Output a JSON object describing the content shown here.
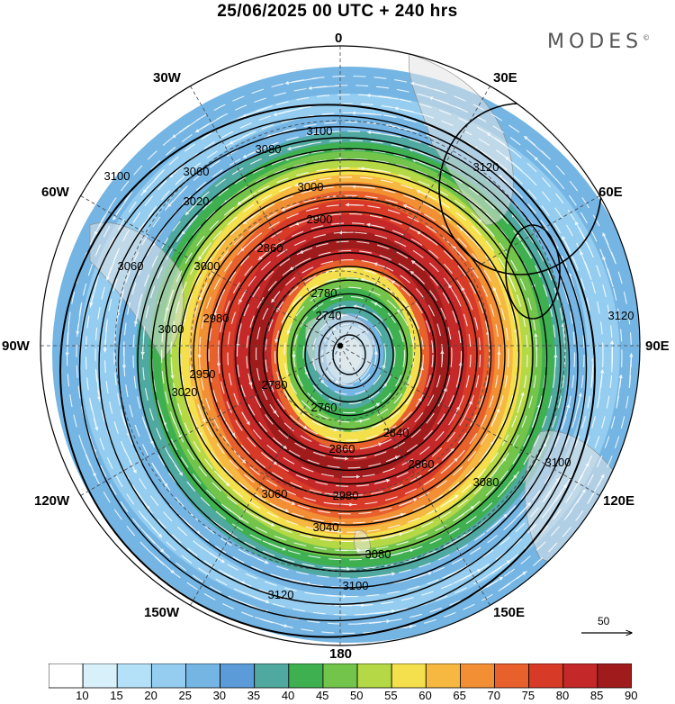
{
  "title": "25/06/2025  00 UTC  + 240 hrs",
  "brand": "MODES",
  "brand_mark": "©",
  "longitude_labels": [
    {
      "text": "0"
    },
    {
      "text": "30E"
    },
    {
      "text": "60E"
    },
    {
      "text": "90E"
    },
    {
      "text": "120E"
    },
    {
      "text": "150E"
    },
    {
      "text": "180"
    },
    {
      "text": "150W"
    },
    {
      "text": "120W"
    },
    {
      "text": "90W"
    },
    {
      "text": "60W"
    },
    {
      "text": "30W"
    }
  ],
  "contour_labels": [
    "3100",
    "3080",
    "3060",
    "3020",
    "3000",
    "2900",
    "2860",
    "2780",
    "2740",
    "2760",
    "2780",
    "2860",
    "2840",
    "2960",
    "2980",
    "3040",
    "3080",
    "3100",
    "3120",
    "3120",
    "3120",
    "3100",
    "3080",
    "3060",
    "3000",
    "2980",
    "2950",
    "3020",
    "3100",
    "3060",
    "3000"
  ],
  "legend": {
    "values": [
      "10",
      "15",
      "20",
      "25",
      "30",
      "35",
      "40",
      "45",
      "50",
      "55",
      "60",
      "65",
      "70",
      "75",
      "80",
      "85",
      "90"
    ],
    "colors": [
      "#ffffff",
      "#d8f0fa",
      "#b4e0f8",
      "#94cdf0",
      "#74b5e4",
      "#5a9bd8",
      "#4fa9a0",
      "#3eb050",
      "#72c44a",
      "#b4d846",
      "#f4e04c",
      "#f6b840",
      "#f28e34",
      "#e8602c",
      "#d83a28",
      "#c42828",
      "#a01c1c"
    ]
  },
  "reference_vector": {
    "label": "50"
  }
}
